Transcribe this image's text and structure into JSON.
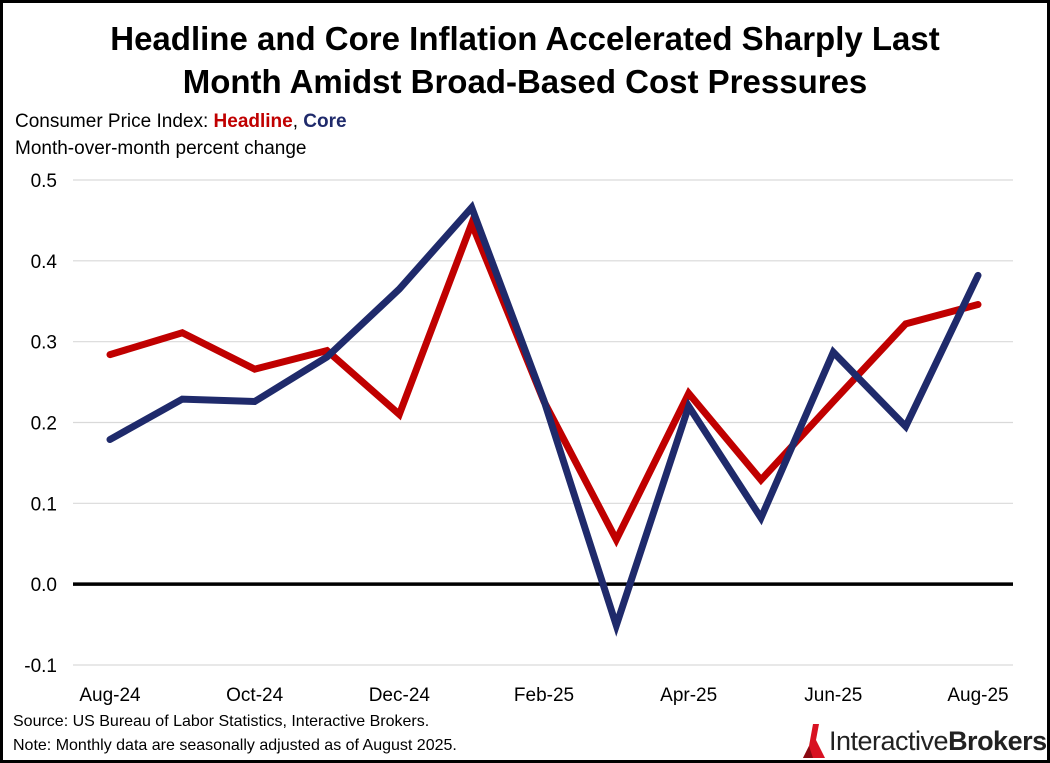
{
  "title_line1": "Headline and Core Inflation Accelerated Sharply Last",
  "title_line2": "Month Amidst Broad-Based Cost Pressures",
  "subtitle_prefix": "Consumer Price Index: ",
  "subtitle_headline": "Headline",
  "subtitle_sep": ", ",
  "subtitle_core": "Core",
  "subtitle_units": "Month-over-month percent change",
  "source_note": "Source: US Bureau of Labor Statistics, Interactive Brokers.",
  "data_note": "Note: Monthly data are seasonally adjusted as of August 2025.",
  "logo": {
    "text_regular": "Interactive",
    "text_bold": "Brokers",
    "icon": "interactive-brokers-logo-icon"
  },
  "colors": {
    "headline": "#c00000",
    "core": "#1f2a6b",
    "grid": "#d9d9d9",
    "zero_line": "#000000"
  },
  "chart_data": {
    "type": "line",
    "title": "Headline and Core Inflation Accelerated Sharply Last Month Amidst Broad-Based Cost Pressures",
    "xlabel": "",
    "ylabel": "Month-over-month percent change",
    "ylim": [
      -0.1,
      0.5
    ],
    "yticks": [
      0.5,
      0.4,
      0.3,
      0.2,
      0.1,
      0.0,
      -0.1
    ],
    "ytick_labels": [
      "0.5",
      "0.4",
      "0.3",
      "0.2",
      "0.1",
      "0.0",
      "-0.1"
    ],
    "x": [
      "Aug-24",
      "Sep-24",
      "Oct-24",
      "Nov-24",
      "Dec-24",
      "Jan-25",
      "Feb-25",
      "Mar-25",
      "Apr-25",
      "May-25",
      "Jun-25",
      "Jul-25",
      "Aug-25"
    ],
    "xtick_labels": [
      "Aug-24",
      "",
      "Oct-24",
      "",
      "Dec-24",
      "",
      "Feb-25",
      "",
      "Apr-25",
      "",
      "Jun-25",
      "",
      "Aug-25"
    ],
    "grid": true,
    "series": [
      {
        "name": "Headline",
        "values": [
          0.284,
          0.311,
          0.266,
          0.289,
          0.21,
          0.446,
          0.226,
          0.055,
          0.236,
          0.129,
          0.226,
          0.322,
          0.346
        ]
      },
      {
        "name": "Core",
        "values": [
          0.179,
          0.229,
          0.226,
          0.281,
          0.365,
          0.466,
          0.227,
          -0.051,
          0.22,
          0.082,
          0.287,
          0.195,
          0.382
        ]
      }
    ]
  }
}
